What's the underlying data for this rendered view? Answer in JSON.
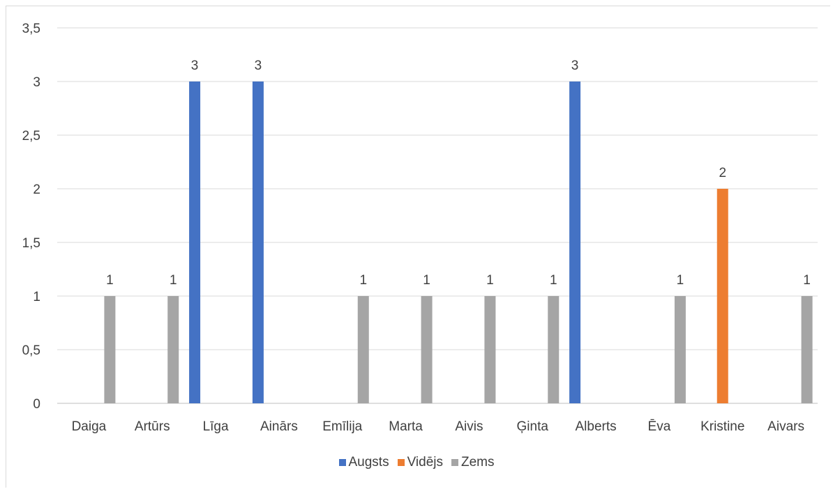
{
  "chart_data": {
    "type": "bar",
    "categories": [
      "Daiga",
      "Artūrs",
      "Līga",
      "Ainārs",
      "Emīlija",
      "Marta",
      "Aivis",
      "Ģinta",
      "Alberts",
      "Ēva",
      "Kristine",
      "Aivars"
    ],
    "series": [
      {
        "name": "Augsts",
        "color": "#4472c4",
        "values": [
          null,
          null,
          3,
          3,
          null,
          null,
          null,
          null,
          3,
          null,
          null,
          null
        ]
      },
      {
        "name": "Vidējs",
        "color": "#ed7d31",
        "values": [
          null,
          null,
          null,
          null,
          null,
          null,
          null,
          null,
          null,
          null,
          2,
          null
        ]
      },
      {
        "name": "Zems",
        "color": "#a5a5a5",
        "values": [
          1,
          1,
          null,
          null,
          1,
          1,
          1,
          1,
          null,
          1,
          null,
          1
        ]
      }
    ],
    "ylim": [
      0,
      3.5
    ],
    "yticks": [
      0,
      0.5,
      1,
      1.5,
      2,
      2.5,
      3,
      3.5
    ],
    "ytick_labels": [
      "0",
      "0,5",
      "1",
      "1,5",
      "2",
      "2,5",
      "3",
      "3,5"
    ],
    "grid": true,
    "legend_position": "bottom",
    "title": "",
    "xlabel": "",
    "ylabel": ""
  }
}
